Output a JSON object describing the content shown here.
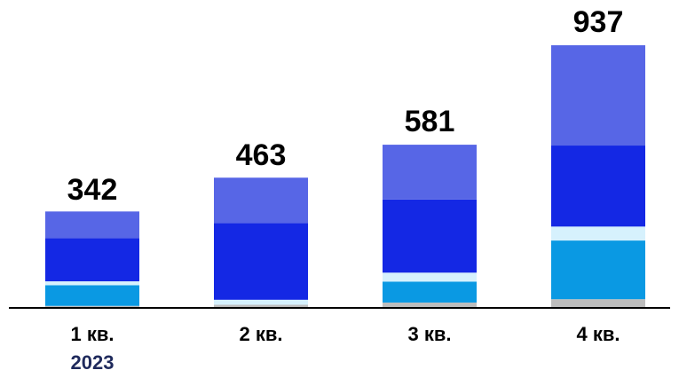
{
  "chart_data": {
    "type": "bar",
    "stacked": true,
    "categories": [
      "1 кв.",
      "2 кв.",
      "3 кв.",
      "4 кв."
    ],
    "category_sublabels": [
      "2023",
      "",
      "",
      ""
    ],
    "totals": [
      "342",
      "463",
      "581",
      "937"
    ],
    "series": [
      {
        "color": "#bdbdbd",
        "values": [
          4,
          8,
          16,
          28
        ]
      },
      {
        "color": "#0a99e3",
        "values": [
          74,
          0,
          75,
          210
        ]
      },
      {
        "color": "#d6f1fd",
        "values": [
          14,
          18,
          32,
          50
        ]
      },
      {
        "color": "#1428e4",
        "values": [
          154,
          274,
          262,
          290
        ]
      },
      {
        "color": "#5766e6",
        "values": [
          96,
          163,
          196,
          359
        ]
      }
    ],
    "ylim": [
      0,
      937
    ],
    "grid": false,
    "legend": "none",
    "xlabel": "",
    "ylabel": ""
  }
}
